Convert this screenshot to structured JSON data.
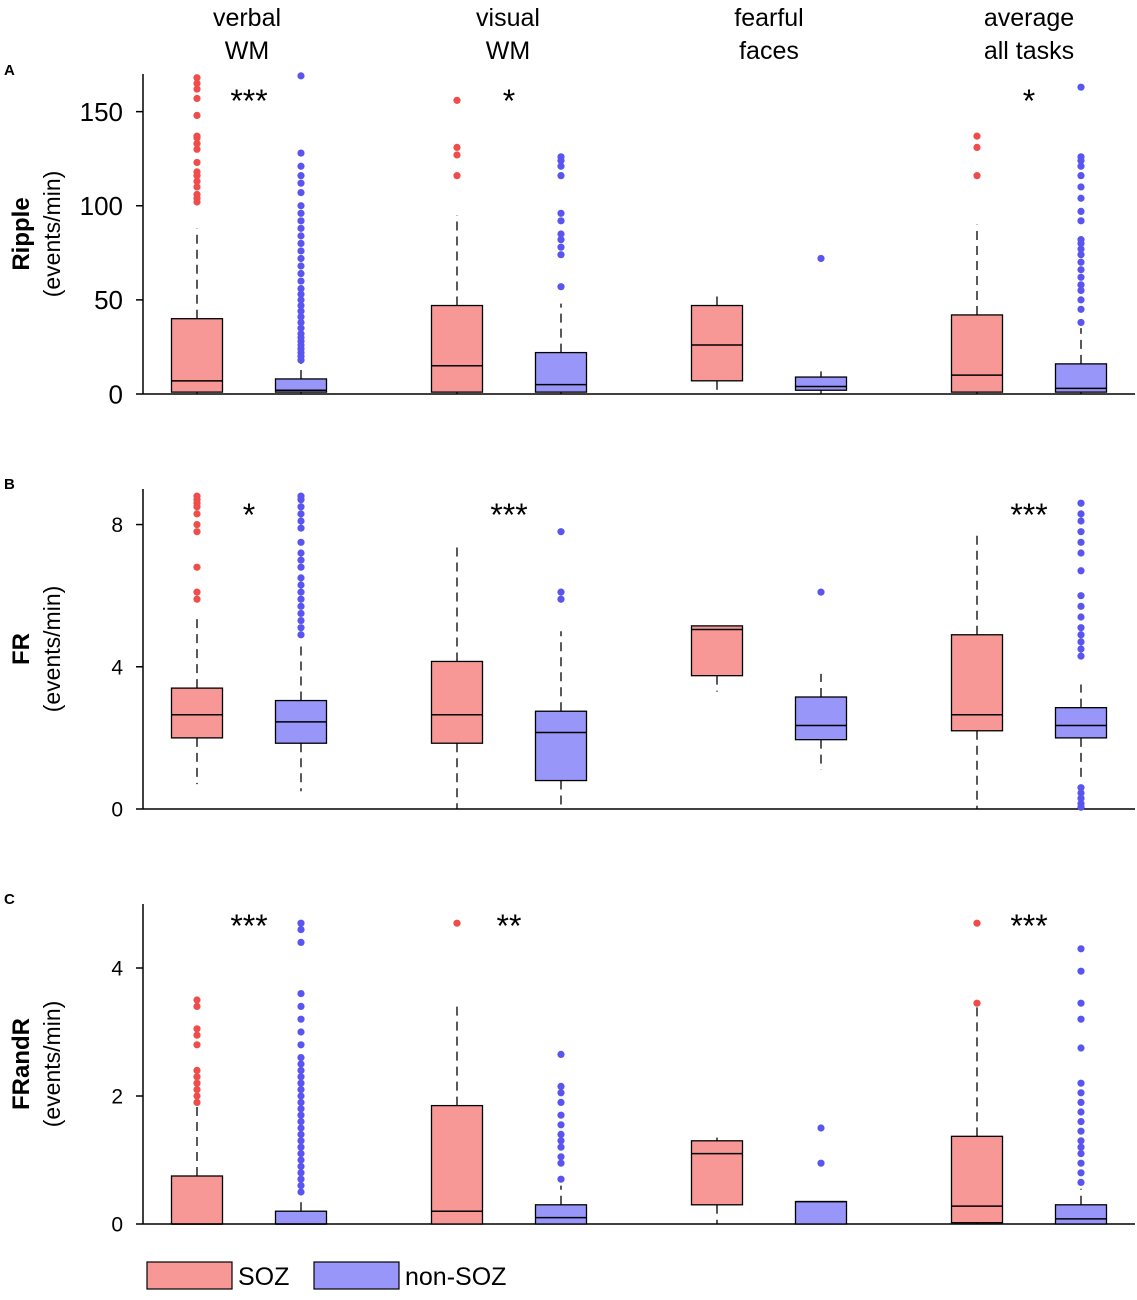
{
  "colors": {
    "soz": "#f89896",
    "soz_outlier": "#ef4d4b",
    "nonsoz": "#9896f9",
    "nonsoz_outlier": "#5a55ee",
    "axis": "#000000"
  },
  "columns": [
    {
      "line1": "verbal",
      "line2": "WM"
    },
    {
      "line1": "visual",
      "line2": "WM"
    },
    {
      "line1": "fearful",
      "line2": "faces"
    },
    {
      "line1": "average",
      "line2": "all tasks"
    }
  ],
  "legend": {
    "soz": "SOZ",
    "nonsoz": "non-SOZ"
  },
  "chart_data": [
    {
      "type": "box",
      "panel": "A",
      "ylabel_bold": "Ripple",
      "ylabel_unit": "(events/min)",
      "ylim": [
        0,
        170
      ],
      "yticks": [
        0,
        50,
        100,
        150
      ],
      "categories": [
        "verbal WM",
        "visual WM",
        "fearful faces",
        "average all tasks"
      ],
      "significance": [
        "***",
        "*",
        "",
        "*"
      ],
      "series": [
        {
          "name": "SOZ",
          "boxes": [
            {
              "wlo": 0,
              "q1": 1,
              "med": 7,
              "q3": 40,
              "whi": 88,
              "outliers": [
                102,
                104,
                106,
                110,
                113,
                116,
                118,
                123,
                130,
                133,
                136,
                137,
                148,
                157,
                162,
                165,
                168
              ]
            },
            {
              "wlo": 0,
              "q1": 1,
              "med": 15,
              "q3": 47,
              "whi": 95,
              "outliers": [
                116,
                127,
                131,
                156
              ]
            },
            {
              "wlo": 0,
              "q1": 7,
              "med": 26,
              "q3": 47,
              "whi": 53,
              "outliers": []
            },
            {
              "wlo": 0,
              "q1": 1,
              "med": 10,
              "q3": 42,
              "whi": 90,
              "outliers": [
                116,
                131,
                137
              ]
            }
          ]
        },
        {
          "name": "non-SOZ",
          "boxes": [
            {
              "wlo": 0,
              "q1": 1,
              "med": 2,
              "q3": 8,
              "whi": 17,
              "outliers": [
                18,
                20,
                22,
                24,
                26,
                28,
                30,
                32,
                35,
                38,
                41,
                44,
                47,
                50,
                53,
                56,
                60,
                64,
                68,
                72,
                76,
                80,
                84,
                88,
                92,
                96,
                100,
                107,
                112,
                116,
                121,
                128,
                169
              ]
            },
            {
              "wlo": 0,
              "q1": 1,
              "med": 5,
              "q3": 22,
              "whi": 48,
              "outliers": [
                57,
                74,
                78,
                82,
                85,
                92,
                96,
                116,
                121,
                124,
                126
              ]
            },
            {
              "wlo": 0,
              "q1": 2,
              "med": 4,
              "q3": 9,
              "whi": 12,
              "outliers": [
                72
              ]
            },
            {
              "wlo": 0,
              "q1": 1,
              "med": 3,
              "q3": 16,
              "whi": 35,
              "outliers": [
                38,
                45,
                50,
                55,
                58,
                62,
                66,
                70,
                74,
                77,
                80,
                82,
                92,
                97,
                104,
                110,
                116,
                121,
                124,
                126,
                163
              ]
            }
          ]
        }
      ]
    },
    {
      "type": "box",
      "panel": "B",
      "ylabel_bold": "FR",
      "ylabel_unit": "(events/min)",
      "ylim": [
        0,
        9
      ],
      "yticks": [
        0,
        4,
        8
      ],
      "categories": [
        "verbal WM",
        "visual WM",
        "fearful faces",
        "average all tasks"
      ],
      "significance": [
        "*",
        "***",
        "",
        "***"
      ],
      "series": [
        {
          "name": "SOZ",
          "boxes": [
            {
              "wlo": 0.7,
              "q1": 2.0,
              "med": 2.65,
              "q3": 3.4,
              "whi": 5.5,
              "outliers": [
                5.9,
                6.1,
                6.8,
                7.8,
                8.0,
                8.3,
                8.5,
                8.6,
                8.7,
                8.8
              ]
            },
            {
              "wlo": 0,
              "q1": 1.85,
              "med": 2.65,
              "q3": 4.15,
              "whi": 7.4,
              "outliers": []
            },
            {
              "wlo": 3.3,
              "q1": 3.75,
              "med": 5.05,
              "q3": 5.15,
              "whi": 5.15,
              "outliers": []
            },
            {
              "wlo": 0,
              "q1": 2.2,
              "med": 2.65,
              "q3": 4.9,
              "whi": 7.8,
              "outliers": []
            }
          ]
        },
        {
          "name": "non-SOZ",
          "boxes": [
            {
              "wlo": 0.5,
              "q1": 1.85,
              "med": 2.45,
              "q3": 3.05,
              "whi": 4.6,
              "outliers": [
                4.9,
                5.1,
                5.3,
                5.5,
                5.7,
                5.9,
                6.1,
                6.3,
                6.5,
                6.8,
                7.0,
                7.2,
                7.5,
                7.9,
                8.1,
                8.3,
                8.5,
                8.7,
                8.8
              ]
            },
            {
              "wlo": 0,
              "q1": 0.8,
              "med": 2.15,
              "q3": 2.75,
              "whi": 5.0,
              "outliers": [
                5.9,
                6.1,
                7.8
              ]
            },
            {
              "wlo": 1.1,
              "q1": 1.95,
              "med": 2.35,
              "q3": 3.15,
              "whi": 3.8,
              "outliers": [
                6.1
              ]
            },
            {
              "wlo": 0.9,
              "q1": 2.0,
              "med": 2.35,
              "q3": 2.85,
              "whi": 3.5,
              "outliers": [
                0.05,
                0.15,
                0.3,
                0.45,
                0.6,
                4.3,
                4.5,
                4.7,
                4.9,
                5.1,
                5.4,
                5.7,
                6.0,
                6.7,
                7.2,
                7.5,
                7.8,
                8.1,
                8.3,
                8.6
              ]
            }
          ]
        }
      ]
    },
    {
      "type": "box",
      "panel": "C",
      "ylabel_bold": "FRandR",
      "ylabel_unit": "(events/min)",
      "ylim": [
        0,
        5
      ],
      "yticks": [
        0,
        2,
        4
      ],
      "categories": [
        "verbal WM",
        "visual WM",
        "fearful faces",
        "average all tasks"
      ],
      "significance": [
        "***",
        "**",
        "",
        "***"
      ],
      "series": [
        {
          "name": "SOZ",
          "boxes": [
            {
              "wlo": 0,
              "q1": 0,
              "med": 0,
              "q3": 0.75,
              "whi": 1.85,
              "outliers": [
                1.9,
                2.0,
                2.1,
                2.2,
                2.3,
                2.4,
                2.8,
                2.95,
                3.05,
                3.4,
                3.5
              ]
            },
            {
              "wlo": 0,
              "q1": 0,
              "med": 0.2,
              "q3": 1.85,
              "whi": 3.45,
              "outliers": [
                4.7
              ]
            },
            {
              "wlo": 0,
              "q1": 0.3,
              "med": 1.1,
              "q3": 1.3,
              "whi": 1.35,
              "outliers": []
            },
            {
              "wlo": 0,
              "q1": 0.02,
              "med": 0.28,
              "q3": 1.37,
              "whi": 3.4,
              "outliers": [
                3.45,
                4.7
              ]
            }
          ]
        },
        {
          "name": "non-SOZ",
          "boxes": [
            {
              "wlo": 0,
              "q1": 0,
              "med": 0,
              "q3": 0.2,
              "whi": 0.4,
              "outliers": [
                0.5,
                0.6,
                0.7,
                0.8,
                0.9,
                1.0,
                1.1,
                1.2,
                1.3,
                1.4,
                1.5,
                1.6,
                1.7,
                1.8,
                1.9,
                2.0,
                2.1,
                2.2,
                2.3,
                2.4,
                2.5,
                2.6,
                2.8,
                3.0,
                3.2,
                3.4,
                3.6,
                4.4,
                4.6,
                4.7
              ]
            },
            {
              "wlo": 0,
              "q1": 0,
              "med": 0.1,
              "q3": 0.3,
              "whi": 0.6,
              "outliers": [
                0.7,
                0.95,
                1.05,
                1.2,
                1.3,
                1.4,
                1.55,
                1.7,
                1.9,
                2.05,
                2.15,
                2.65
              ]
            },
            {
              "wlo": 0,
              "q1": 0,
              "med": 0.35,
              "q3": 0.35,
              "whi": 0.35,
              "outliers": [
                0.95,
                1.5
              ]
            },
            {
              "wlo": 0,
              "q1": 0,
              "med": 0.08,
              "q3": 0.3,
              "whi": 0.55,
              "outliers": [
                0.65,
                0.8,
                0.95,
                1.1,
                1.2,
                1.3,
                1.45,
                1.6,
                1.75,
                1.9,
                2.05,
                2.2,
                2.75,
                3.2,
                3.45,
                3.95,
                4.3
              ]
            }
          ]
        }
      ]
    }
  ]
}
